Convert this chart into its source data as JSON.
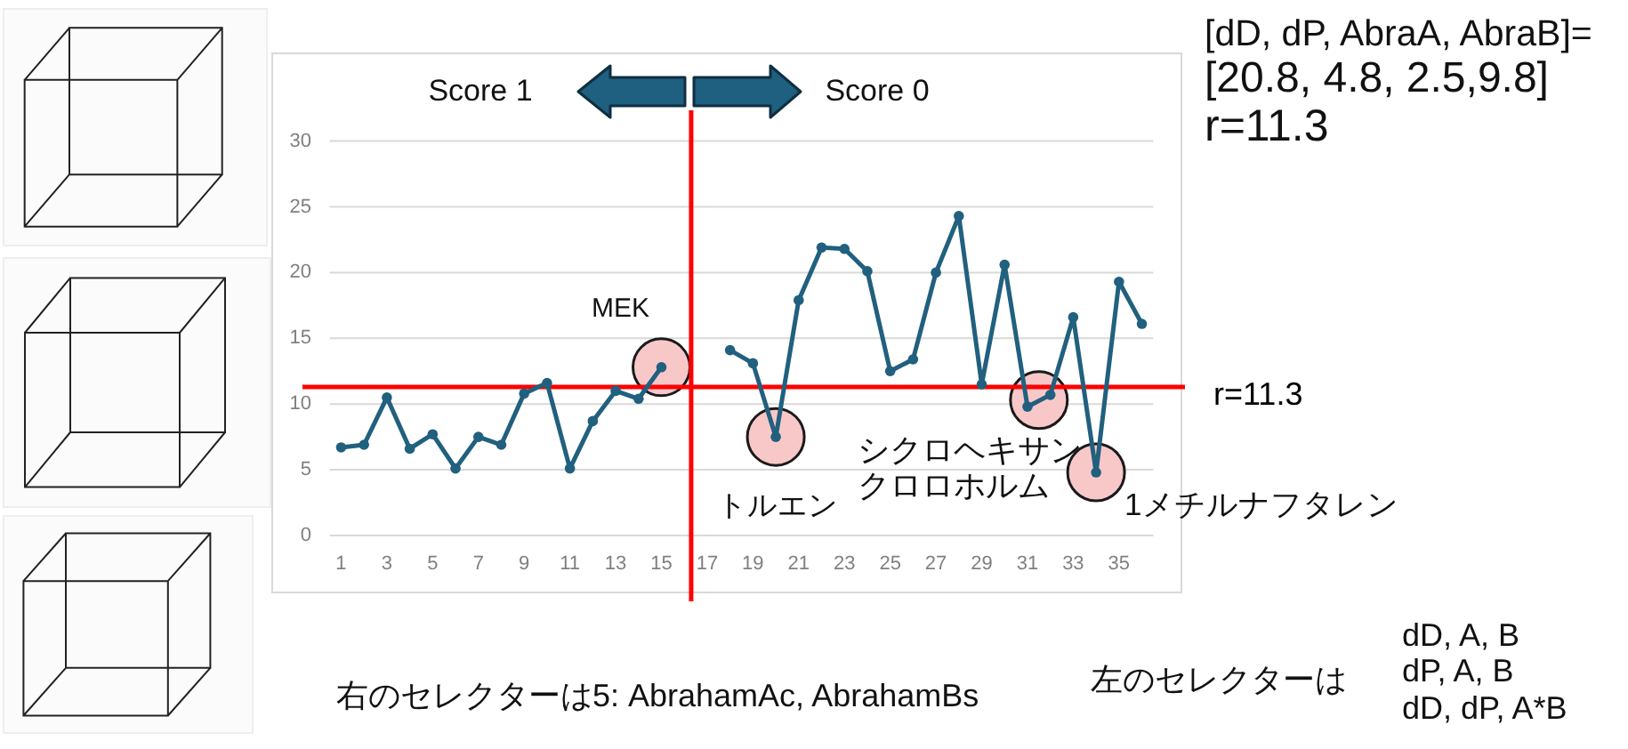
{
  "chart_data": {
    "type": "line",
    "series": [
      {
        "color": "#21607e",
        "x": [
          1,
          2,
          3,
          4,
          5,
          6,
          7,
          8,
          9,
          10,
          11,
          12,
          13,
          14,
          15
        ],
        "values": [
          6.7,
          6.9,
          10.5,
          6.6,
          7.7,
          5.1,
          7.5,
          6.9,
          10.8,
          11.6,
          5.1,
          8.7,
          11.0,
          10.4,
          12.8
        ]
      },
      {
        "color": "#21607e",
        "x": [
          18,
          19,
          20,
          21,
          22,
          23,
          24,
          25,
          26,
          27,
          28,
          29,
          30,
          31,
          32,
          33,
          34,
          35,
          36
        ],
        "values": [
          14.1,
          13.1,
          7.5,
          17.9,
          21.9,
          21.8,
          20.1,
          12.5,
          13.4,
          20.0,
          24.3,
          11.5,
          20.6,
          9.8,
          10.7,
          16.6,
          4.8,
          19.3,
          16.1
        ]
      }
    ],
    "xlim": [
      0.5,
      36.5
    ],
    "xticks": [
      1,
      3,
      5,
      7,
      9,
      11,
      13,
      15,
      17,
      19,
      21,
      23,
      25,
      27,
      29,
      31,
      33,
      35
    ],
    "ylim": [
      0,
      30
    ],
    "yticks": [
      0,
      5,
      10,
      15,
      20,
      25,
      30
    ],
    "grid": "y",
    "marker": "circle",
    "line_style": "solid",
    "ref_lines": [
      {
        "axis": "y",
        "value": 11.3,
        "label": "r=11.3",
        "color": "#ff0000"
      },
      {
        "axis": "x",
        "value": 16.3,
        "color": "#ff0000"
      }
    ],
    "annotations": [
      "Score 1",
      "Score 0",
      {
        "text": "MEK",
        "x": 15,
        "y": 12.8
      },
      {
        "text": "トルエン",
        "x": 20,
        "y": 7.5
      },
      {
        "text": "シクロヘキサン",
        "x": 31.5,
        "y": 10.3
      },
      "クロロホルム",
      {
        "text": "1メチルナフタレン",
        "x": 34,
        "y": 4.8
      },
      "[dD, dP, AbraA, AbraB]=",
      "[20.8, 4.8, 2.5,9.8]",
      "r=11.3",
      "右のセレクターは5: AbrahamAc, AbrahamBs",
      "左のセレクターは",
      "dD, A, B",
      "dP, A, B",
      "dD, dP, A*B"
    ]
  }
}
